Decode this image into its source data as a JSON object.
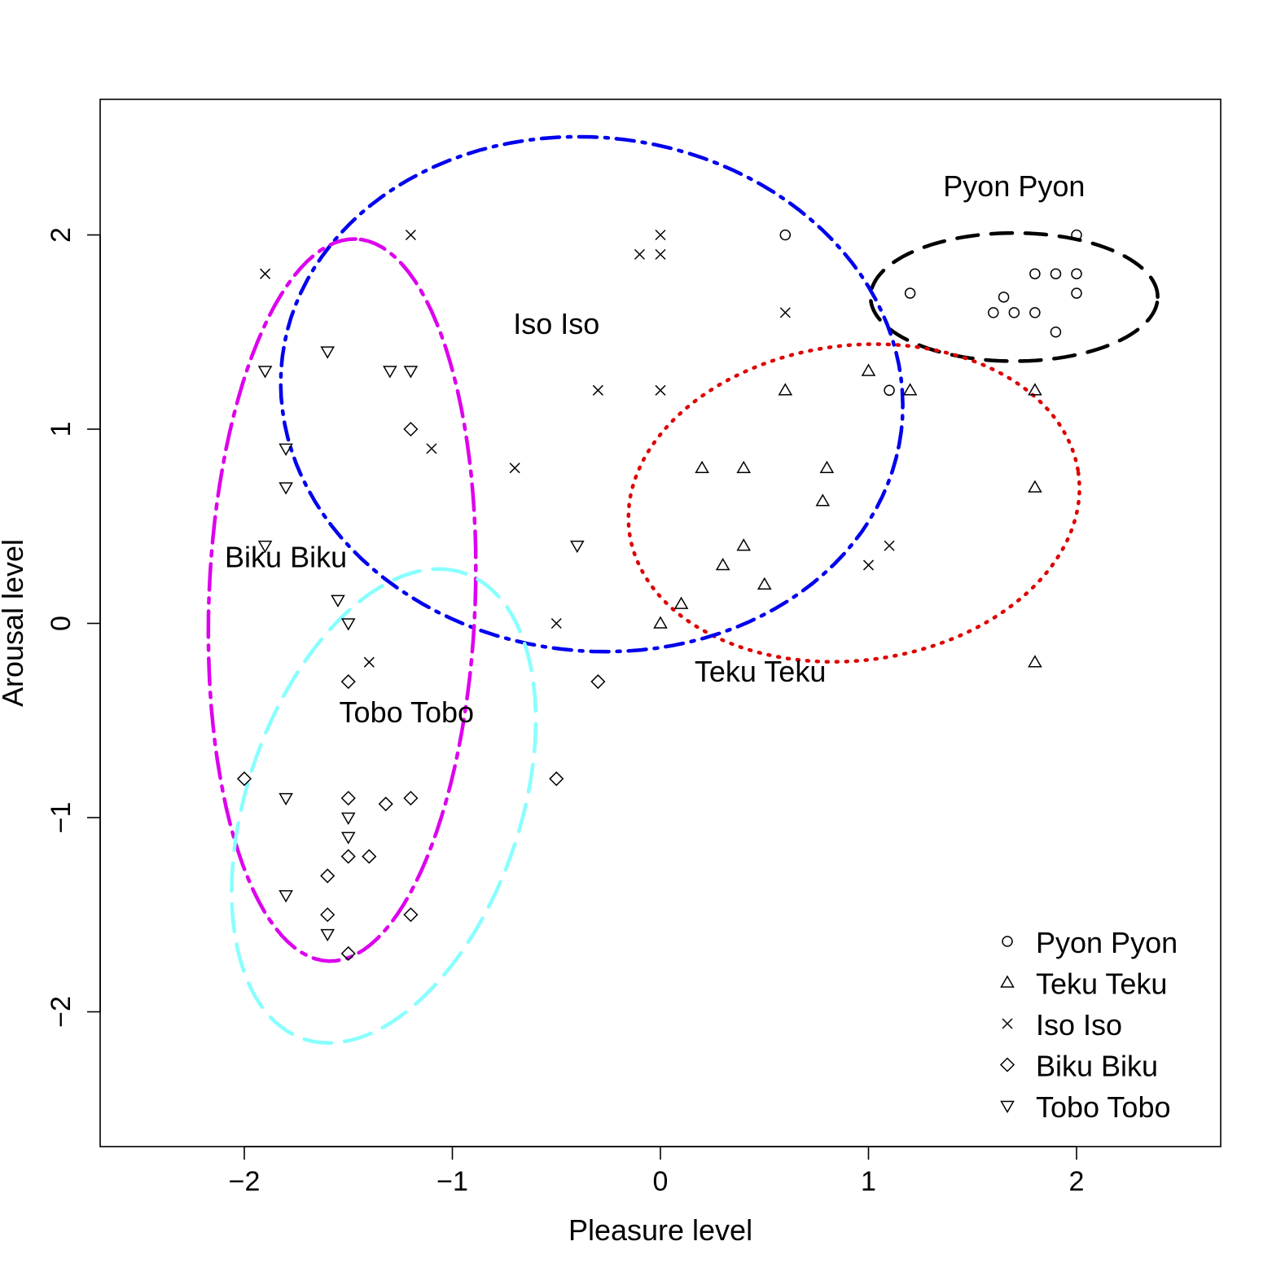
{
  "chart_data": {
    "type": "scatter",
    "xlabel": "Pleasure level",
    "ylabel": "Arousal level",
    "xlim": [
      -2.7,
      2.7
    ],
    "ylim": [
      -2.7,
      2.7
    ],
    "x_ticks": [
      -2,
      -1,
      0,
      1,
      2
    ],
    "y_ticks": [
      -2,
      -1,
      0,
      1,
      2
    ],
    "x_tick_labels": [
      "−2",
      "−1",
      "0",
      "1",
      "2"
    ],
    "y_tick_labels": [
      "−2",
      "−1",
      "0",
      "1",
      "2"
    ],
    "legend_position": "bottom-right",
    "series": [
      {
        "name": "Pyon Pyon",
        "marker": "circle",
        "points": [
          [
            0.6,
            2.0
          ],
          [
            1.2,
            1.7
          ],
          [
            1.65,
            1.68
          ],
          [
            1.6,
            1.6
          ],
          [
            1.7,
            1.6
          ],
          [
            1.8,
            1.6
          ],
          [
            1.8,
            1.8
          ],
          [
            1.9,
            1.8
          ],
          [
            2.0,
            1.8
          ],
          [
            2.0,
            2.0
          ],
          [
            2.0,
            1.7
          ],
          [
            1.9,
            1.5
          ],
          [
            1.1,
            1.2
          ]
        ]
      },
      {
        "name": "Teku Teku",
        "marker": "triangle-up",
        "points": [
          [
            1.0,
            1.3
          ],
          [
            1.2,
            1.2
          ],
          [
            0.6,
            1.2
          ],
          [
            1.8,
            1.2
          ],
          [
            0.2,
            0.8
          ],
          [
            0.4,
            0.8
          ],
          [
            0.8,
            0.8
          ],
          [
            0.78,
            0.63
          ],
          [
            1.8,
            0.7
          ],
          [
            0.4,
            0.4
          ],
          [
            0.3,
            0.3
          ],
          [
            0.5,
            0.2
          ],
          [
            0.1,
            0.1
          ],
          [
            0.0,
            0.0
          ],
          [
            1.8,
            -0.2
          ]
        ]
      },
      {
        "name": "Iso Iso",
        "marker": "cross",
        "points": [
          [
            -1.9,
            1.8
          ],
          [
            -1.2,
            2.0
          ],
          [
            0.0,
            2.0
          ],
          [
            -0.1,
            1.9
          ],
          [
            0.0,
            1.9
          ],
          [
            0.6,
            1.6
          ],
          [
            -0.3,
            1.2
          ],
          [
            0.0,
            1.2
          ],
          [
            -1.1,
            0.9
          ],
          [
            -0.7,
            0.8
          ],
          [
            1.1,
            0.4
          ],
          [
            1.0,
            0.3
          ],
          [
            -0.5,
            0.0
          ],
          [
            -1.4,
            -0.2
          ]
        ]
      },
      {
        "name": "Biku Biku",
        "marker": "diamond",
        "points": [
          [
            -1.2,
            1.0
          ],
          [
            -1.5,
            -0.3
          ],
          [
            -0.3,
            -0.3
          ],
          [
            -2.0,
            -0.8
          ],
          [
            -0.5,
            -0.8
          ],
          [
            -1.5,
            -0.9
          ],
          [
            -1.2,
            -0.9
          ],
          [
            -1.32,
            -0.93
          ],
          [
            -1.5,
            -1.2
          ],
          [
            -1.4,
            -1.2
          ],
          [
            -1.6,
            -1.3
          ],
          [
            -1.6,
            -1.5
          ],
          [
            -1.2,
            -1.5
          ],
          [
            -1.5,
            -1.7
          ]
        ]
      },
      {
        "name": "Tobo Tobo",
        "marker": "triangle-down",
        "points": [
          [
            -1.6,
            1.4
          ],
          [
            -1.9,
            1.3
          ],
          [
            -1.3,
            1.3
          ],
          [
            -1.2,
            1.3
          ],
          [
            -1.8,
            0.9
          ],
          [
            -1.8,
            0.7
          ],
          [
            -1.9,
            0.4
          ],
          [
            -0.4,
            0.4
          ],
          [
            -1.55,
            0.12
          ],
          [
            -1.5,
            0.0
          ],
          [
            -1.8,
            -0.9
          ],
          [
            -1.5,
            -1.0
          ],
          [
            -1.5,
            -1.1
          ],
          [
            -1.8,
            -1.4
          ],
          [
            -1.6,
            -1.6
          ]
        ]
      }
    ],
    "ellipses": [
      {
        "group": "Pyon Pyon",
        "color": "#000000",
        "style": "dashed",
        "center": [
          1.7,
          1.68
        ],
        "semi_major": 0.69,
        "semi_minor": 0.33,
        "angle_deg": 0
      },
      {
        "group": "Teku Teku",
        "color": "#dd0000",
        "style": "dotted",
        "center": [
          0.93,
          0.62
        ],
        "semi_major": 1.09,
        "semi_minor": 0.81,
        "angle_deg": 9
      },
      {
        "group": "Iso Iso",
        "color": "#0000ee",
        "style": "dashdot",
        "center": [
          -0.33,
          1.18
        ],
        "semi_major": 1.5,
        "semi_minor": 1.32,
        "angle_deg": -10
      },
      {
        "group": "Biku Biku",
        "color": "#dd00ee",
        "style": "longdashdot",
        "center": [
          -1.53,
          0.12
        ],
        "semi_major": 1.86,
        "semi_minor": 0.64,
        "angle_deg": 88
      },
      {
        "group": "Tobo Tobo",
        "color": "#88ffff",
        "style": "longdash",
        "center": [
          -1.33,
          -0.94
        ],
        "semi_major": 1.26,
        "semi_minor": 0.66,
        "angle_deg": 73
      }
    ],
    "annotations": [
      {
        "text": "Pyon Pyon",
        "x": 1.7,
        "y": 2.2
      },
      {
        "text": "Iso Iso",
        "x": -0.5,
        "y": 1.49
      },
      {
        "text": "Biku Biku",
        "x": -1.8,
        "y": 0.29
      },
      {
        "text": "Tobo Tobo",
        "x": -1.22,
        "y": -0.51
      },
      {
        "text": "Teku Teku",
        "x": 0.48,
        "y": -0.3
      }
    ]
  }
}
